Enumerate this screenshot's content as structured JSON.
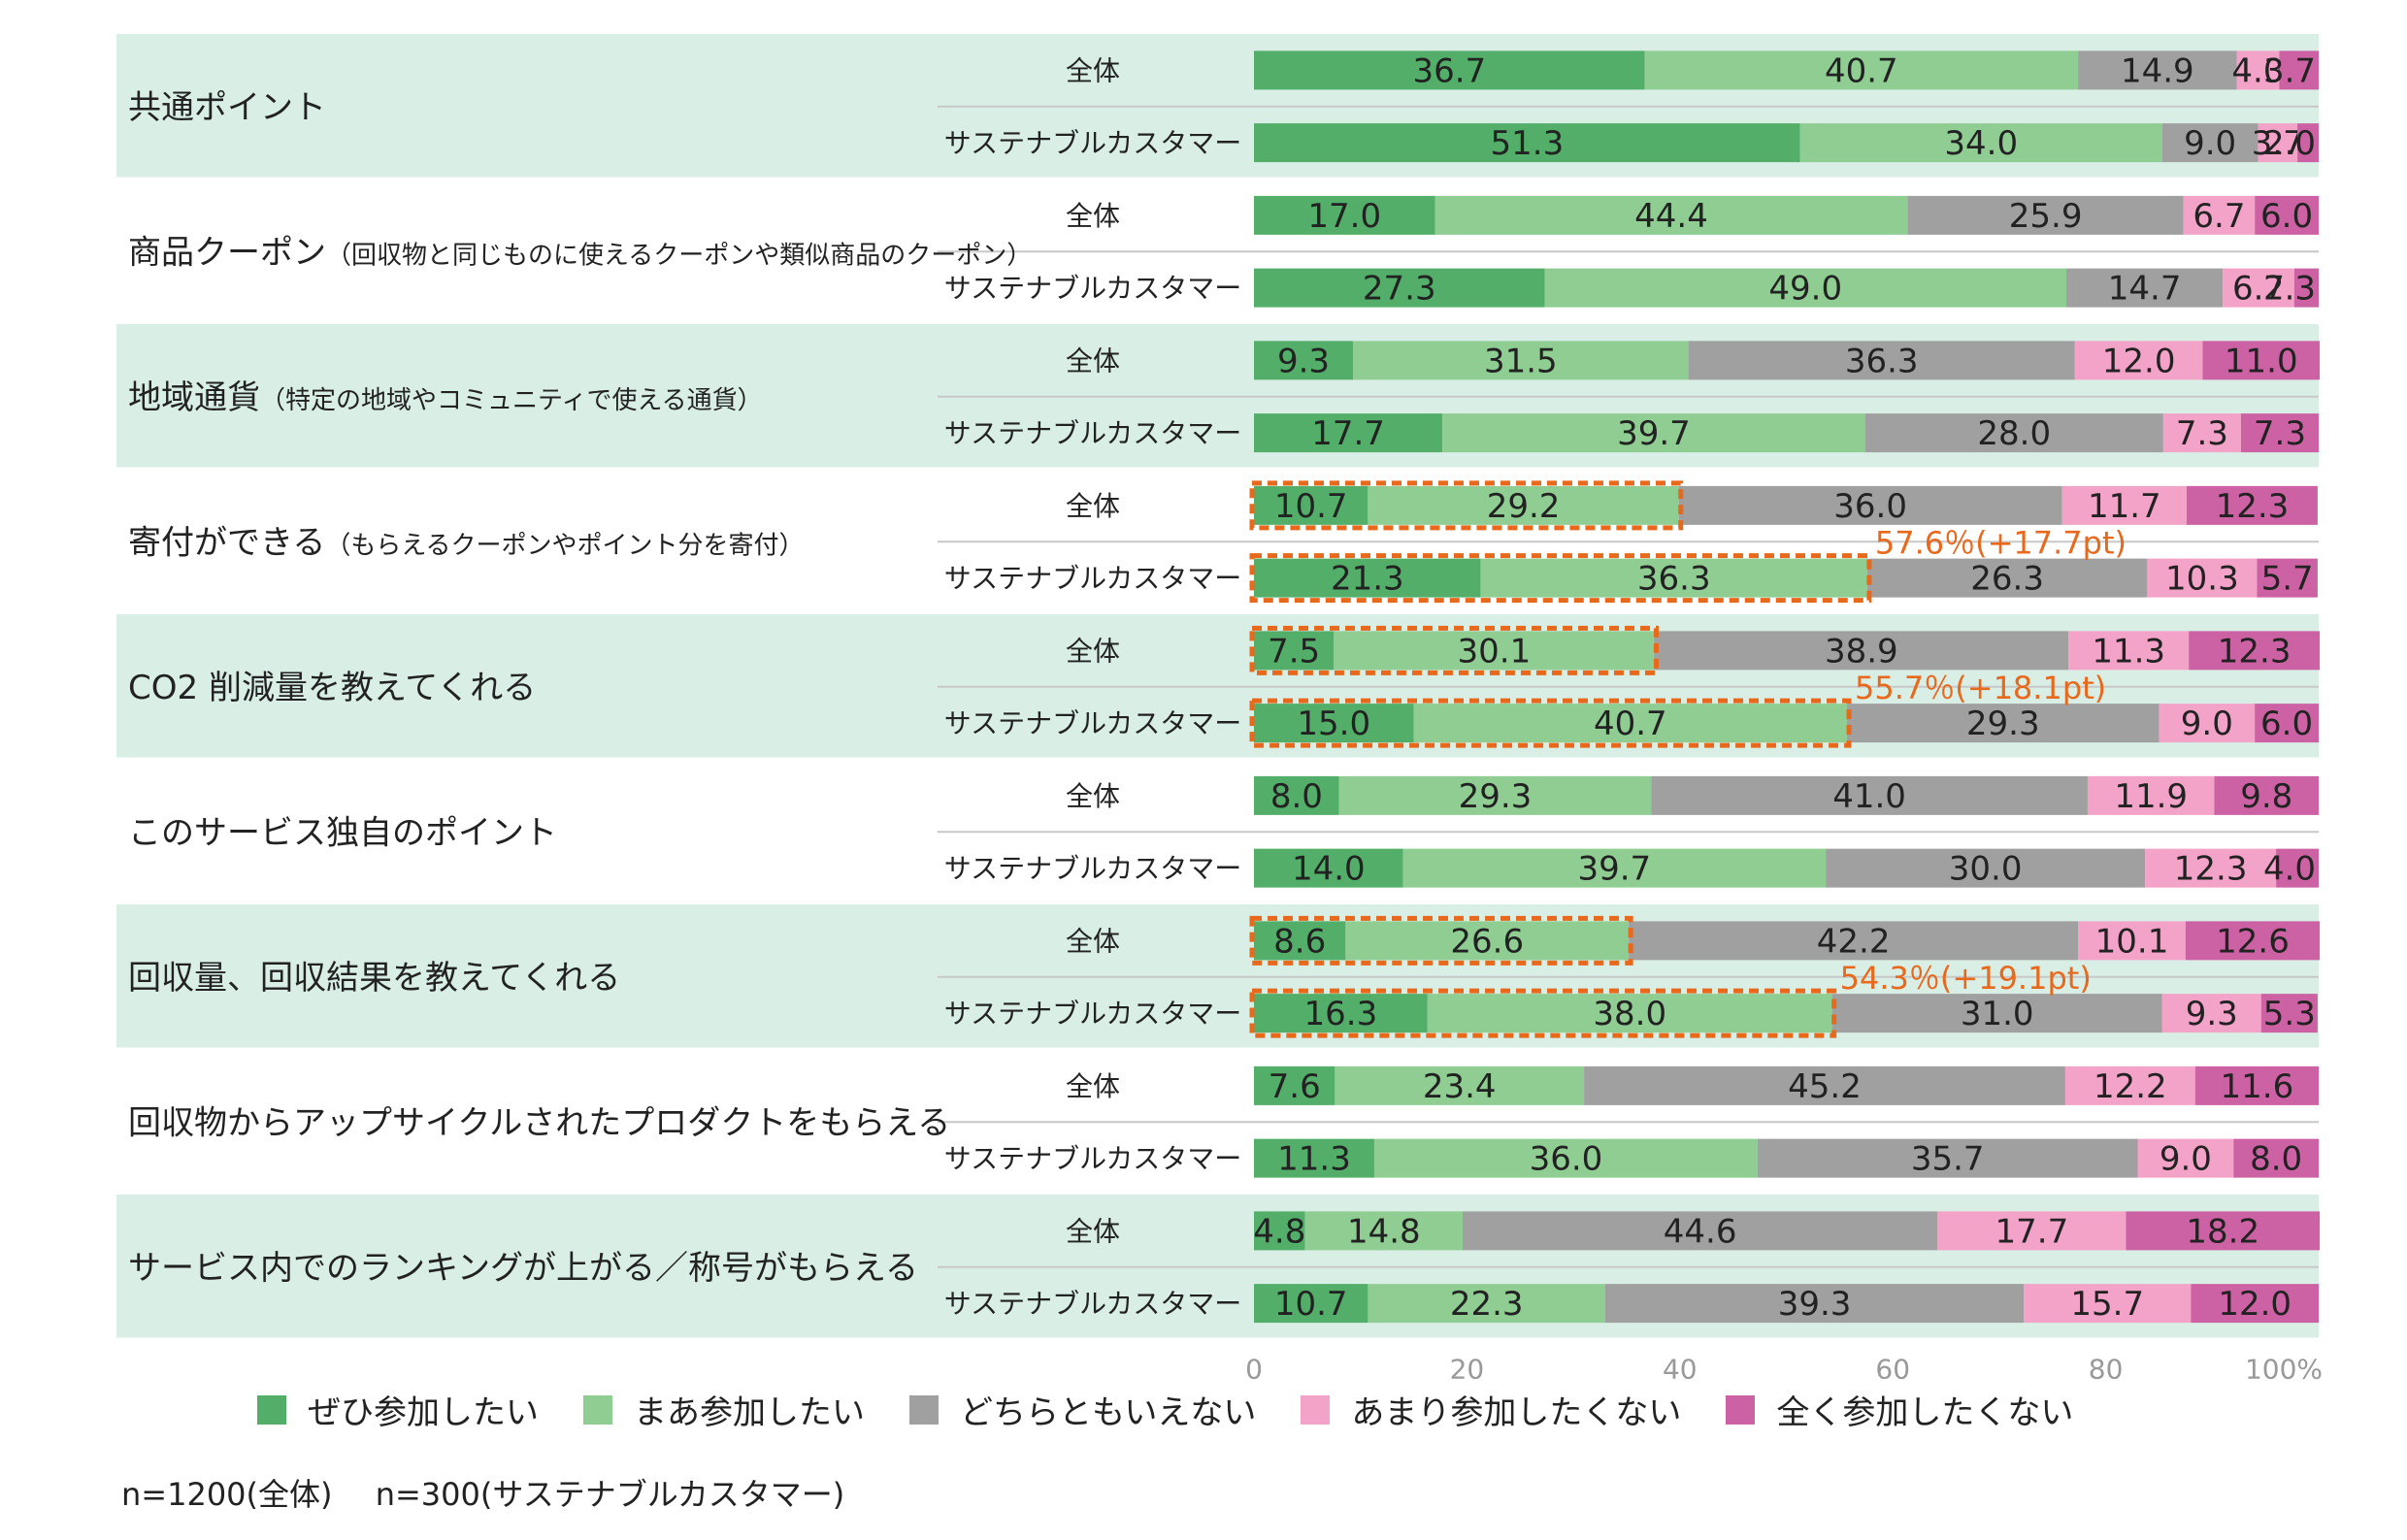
{
  "chart_data": {
    "type": "bar",
    "orientation": "horizontal",
    "stacked": true,
    "xlim": [
      0,
      100
    ],
    "x_ticks": [
      "0",
      "20",
      "40",
      "60",
      "80",
      "100%"
    ],
    "legend_position": "bottom",
    "grid": false,
    "segment_names": [
      "ぜひ参加したい",
      "まあ参加したい",
      "どちらともいえない",
      "あまり参加したくない",
      "全く参加したくない"
    ],
    "segment_colors": [
      "#52ae68",
      "#8fcd92",
      "#a0a0a0",
      "#f3a2c8",
      "#cc62a4"
    ],
    "groups": [
      {
        "label": "共通ポイント",
        "note": "",
        "bars": [
          {
            "label": "全体",
            "values": [
              36.7,
              40.7,
              14.9,
              4.0,
              3.7
            ],
            "value_labels": [
              "36.7",
              "40.7",
              "14.9",
              "4.0",
              "3.7"
            ]
          },
          {
            "label": "サステナブルカスタマー",
            "values": [
              51.3,
              34.0,
              9.0,
              3.7,
              2.0
            ],
            "value_labels": [
              "51.3",
              "34.0",
              "9.0",
              "3.7",
              "2.0"
            ]
          }
        ]
      },
      {
        "label": "商品クーポン",
        "note": "（回収物と同じものに使えるクーポンや類似商品のクーポン）",
        "bars": [
          {
            "label": "全体",
            "values": [
              17.0,
              44.4,
              25.9,
              6.7,
              6.0
            ],
            "value_labels": [
              "17.0",
              "44.4",
              "25.9",
              "6.7",
              "6.0"
            ]
          },
          {
            "label": "サステナブルカスタマー",
            "values": [
              27.3,
              49.0,
              14.7,
              6.7,
              2.3
            ],
            "value_labels": [
              "27.3",
              "49.0",
              "14.7",
              "6.7",
              "2.3"
            ]
          }
        ]
      },
      {
        "label": "地域通貨",
        "note": "（特定の地域やコミュニティで使える通貨）",
        "bars": [
          {
            "label": "全体",
            "values": [
              9.3,
              31.5,
              36.3,
              12.0,
              11.0
            ],
            "value_labels": [
              "9.3",
              "31.5",
              "36.3",
              "12.0",
              "11.0"
            ]
          },
          {
            "label": "サステナブルカスタマー",
            "values": [
              17.7,
              39.7,
              28.0,
              7.3,
              7.3
            ],
            "value_labels": [
              "17.7",
              "39.7",
              "28.0",
              "7.3",
              "7.3"
            ]
          }
        ]
      },
      {
        "label": "寄付ができる",
        "note": "（もらえるクーポンやポイント分を寄付）",
        "highlight": "57.6％(+17.7pt)",
        "bars": [
          {
            "label": "全体",
            "values": [
              10.7,
              29.2,
              36.0,
              11.7,
              12.3
            ],
            "value_labels": [
              "10.7",
              "29.2",
              "36.0",
              "11.7",
              "12.3"
            ]
          },
          {
            "label": "サステナブルカスタマー",
            "values": [
              21.3,
              36.3,
              26.3,
              10.3,
              5.7
            ],
            "value_labels": [
              "21.3",
              "36.3",
              "26.3",
              "10.3",
              "5.7"
            ]
          }
        ]
      },
      {
        "label": "CO2 削減量を教えてくれる",
        "note": "",
        "highlight": "55.7％(+18.1pt)",
        "bars": [
          {
            "label": "全体",
            "values": [
              7.5,
              30.1,
              38.9,
              11.3,
              12.3
            ],
            "value_labels": [
              "7.5",
              "30.1",
              "38.9",
              "11.3",
              "12.3"
            ]
          },
          {
            "label": "サステナブルカスタマー",
            "values": [
              15.0,
              40.7,
              29.3,
              9.0,
              6.0
            ],
            "value_labels": [
              "15.0",
              "40.7",
              "29.3",
              "9.0",
              "6.0"
            ]
          }
        ]
      },
      {
        "label": "このサービス独自のポイント",
        "note": "",
        "bars": [
          {
            "label": "全体",
            "values": [
              8.0,
              29.3,
              41.0,
              11.9,
              9.8
            ],
            "value_labels": [
              "8.0",
              "29.3",
              "41.0",
              "11.9",
              "9.8"
            ]
          },
          {
            "label": "サステナブルカスタマー",
            "values": [
              14.0,
              39.7,
              30.0,
              12.3,
              4.0
            ],
            "value_labels": [
              "14.0",
              "39.7",
              "30.0",
              "12.3",
              "4.0"
            ]
          }
        ]
      },
      {
        "label": "回収量、回収結果を教えてくれる",
        "note": "",
        "highlight": "54.3％(+19.1pt)",
        "bars": [
          {
            "label": "全体",
            "values": [
              8.6,
              26.6,
              42.2,
              10.1,
              12.6
            ],
            "value_labels": [
              "8.6",
              "26.6",
              "42.2",
              "10.1",
              "12.6"
            ]
          },
          {
            "label": "サステナブルカスタマー",
            "values": [
              16.3,
              38.0,
              31.0,
              9.3,
              5.3
            ],
            "value_labels": [
              "16.3",
              "38.0",
              "31.0",
              "9.3",
              "5.3"
            ]
          }
        ]
      },
      {
        "label": "回収物からアップサイクルされたプロダクトをもらえる",
        "note": "",
        "bars": [
          {
            "label": "全体",
            "values": [
              7.6,
              23.4,
              45.2,
              12.2,
              11.6
            ],
            "value_labels": [
              "7.6",
              "23.4",
              "45.2",
              "12.2",
              "11.6"
            ]
          },
          {
            "label": "サステナブルカスタマー",
            "values": [
              11.3,
              36.0,
              35.7,
              9.0,
              8.0
            ],
            "value_labels": [
              "11.3",
              "36.0",
              "35.7",
              "9.0",
              "8.0"
            ]
          }
        ]
      },
      {
        "label": "サービス内でのランキングが上がる／称号がもらえる",
        "note": "",
        "bars": [
          {
            "label": "全体",
            "values": [
              4.8,
              14.8,
              44.6,
              17.7,
              18.2
            ],
            "value_labels": [
              "4.8",
              "14.8",
              "44.6",
              "17.7",
              "18.2"
            ]
          },
          {
            "label": "サステナブルカスタマー",
            "values": [
              10.7,
              22.3,
              39.3,
              15.7,
              12.0
            ],
            "value_labels": [
              "10.7",
              "22.3",
              "39.3",
              "15.7",
              "12.0"
            ]
          }
        ]
      }
    ]
  },
  "colors": {
    "group_band": "#d9efe6",
    "highlight": "#e8681c",
    "axis_text": "#999999",
    "separator": "#c8c8c8"
  },
  "legend": {
    "items": [
      {
        "label": "ぜひ参加したい",
        "color": "#52ae68"
      },
      {
        "label": "まあ参加したい",
        "color": "#8fcd92"
      },
      {
        "label": "どちらともいえない",
        "color": "#a0a0a0"
      },
      {
        "label": "あまり参加したくない",
        "color": "#f3a2c8"
      },
      {
        "label": "全く参加したくない",
        "color": "#cc62a4"
      }
    ]
  },
  "footnote": {
    "all": "n=1200(全体)",
    "sustainable": "n=300(サステナブルカスタマー)"
  }
}
